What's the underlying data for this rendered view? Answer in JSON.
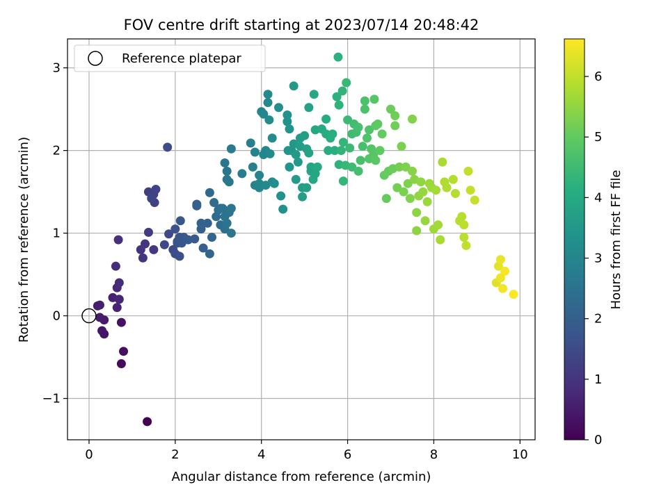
{
  "chart_data": {
    "type": "scatter",
    "title": "FOV centre drift starting at 2023/07/14 20:48:42",
    "xlabel": "Angular distance from reference (arcmin)",
    "ylabel": "Rotation from reference (arcmin)",
    "xlim": [
      -0.5,
      10.35
    ],
    "ylim": [
      -1.5,
      3.35
    ],
    "x_ticks": [
      0,
      2,
      4,
      6,
      8,
      10
    ],
    "y_ticks": [
      -1,
      0,
      1,
      2,
      3
    ],
    "x_tick_labels": [
      "0",
      "2",
      "4",
      "6",
      "8",
      "10"
    ],
    "y_tick_labels": [
      "−1",
      "0",
      "1",
      "2",
      "3"
    ],
    "grid": true,
    "legend": {
      "placement": "top-left",
      "label": "Reference platepar"
    },
    "reference": {
      "x": 0,
      "y": 0
    },
    "colorbar": {
      "label": "Hours from first FF file",
      "colormap": "viridis",
      "range": [
        0,
        6.62
      ],
      "ticks": [
        0,
        1,
        2,
        3,
        4,
        5,
        6
      ],
      "tick_labels": [
        "0",
        "1",
        "2",
        "3",
        "4",
        "5",
        "6"
      ]
    },
    "points": [
      [
        1.35,
        -1.28,
        0.0
      ],
      [
        0.75,
        -0.58,
        0.2
      ],
      [
        0.8,
        -0.43,
        0.25
      ],
      [
        0.75,
        -0.08,
        0.3
      ],
      [
        0.35,
        -0.22,
        0.35
      ],
      [
        0.3,
        -0.18,
        0.4
      ],
      [
        0.35,
        -0.05,
        0.45
      ],
      [
        0.25,
        -0.02,
        0.5
      ],
      [
        0.2,
        0.12,
        0.5
      ],
      [
        0.25,
        0.13,
        0.55
      ],
      [
        0.55,
        0.22,
        0.6
      ],
      [
        0.65,
        0.1,
        0.65
      ],
      [
        0.7,
        0.2,
        0.7
      ],
      [
        0.65,
        0.34,
        0.75
      ],
      [
        0.7,
        0.4,
        0.8
      ],
      [
        0.62,
        0.6,
        0.85
      ],
      [
        0.68,
        0.92,
        0.9
      ],
      [
        1.25,
        0.7,
        1.0
      ],
      [
        1.2,
        0.8,
        1.0
      ],
      [
        1.3,
        0.87,
        1.05
      ],
      [
        1.5,
        0.8,
        1.1
      ],
      [
        1.38,
        1.01,
        1.15
      ],
      [
        1.38,
        1.5,
        1.2
      ],
      [
        1.5,
        1.47,
        1.25
      ],
      [
        1.55,
        1.53,
        1.3
      ],
      [
        1.52,
        1.37,
        1.3
      ],
      [
        1.45,
        1.42,
        1.35
      ],
      [
        1.75,
        0.86,
        1.4
      ],
      [
        1.85,
        0.99,
        1.45
      ],
      [
        1.82,
        2.04,
        1.5
      ],
      [
        1.95,
        0.8,
        1.5
      ],
      [
        2.0,
        0.75,
        1.55
      ],
      [
        2.05,
        0.88,
        1.6
      ],
      [
        2.1,
        0.72,
        1.6
      ],
      [
        2.0,
        1.05,
        1.65
      ],
      [
        2.1,
        0.95,
        1.7
      ],
      [
        2.15,
        0.88,
        1.75
      ],
      [
        2.05,
        0.9,
        1.75
      ],
      [
        2.12,
        1.15,
        1.8
      ],
      [
        2.2,
        0.95,
        1.8
      ],
      [
        2.3,
        0.92,
        1.85
      ],
      [
        2.45,
        0.93,
        1.9
      ],
      [
        2.5,
        1.35,
        1.95
      ],
      [
        2.5,
        1.33,
        2.0
      ],
      [
        2.65,
        0.82,
        2.0
      ],
      [
        2.6,
        1.05,
        2.05
      ],
      [
        2.6,
        1.12,
        2.1
      ],
      [
        2.75,
        1.12,
        2.1
      ],
      [
        2.8,
        0.75,
        2.15
      ],
      [
        2.85,
        0.95,
        2.2
      ],
      [
        2.8,
        1.49,
        2.25
      ],
      [
        2.95,
        1.2,
        2.3
      ],
      [
        3.05,
        1.1,
        2.35
      ],
      [
        2.9,
        1.37,
        2.35
      ],
      [
        3.0,
        1.28,
        2.4
      ],
      [
        3.05,
        1.3,
        2.4
      ],
      [
        3.1,
        1.3,
        2.45
      ],
      [
        3.15,
        1.05,
        2.45
      ],
      [
        3.2,
        1.12,
        2.5
      ],
      [
        3.15,
        1.2,
        2.5
      ],
      [
        3.25,
        1.25,
        2.55
      ],
      [
        3.3,
        1.3,
        2.55
      ],
      [
        3.3,
        1.0,
        2.55
      ],
      [
        3.15,
        1.85,
        2.6
      ],
      [
        3.2,
        1.75,
        2.6
      ],
      [
        3.2,
        1.65,
        2.65
      ],
      [
        3.25,
        1.62,
        2.65
      ],
      [
        3.3,
        2.02,
        2.7
      ],
      [
        3.55,
        1.72,
        2.75
      ],
      [
        3.75,
        2.09,
        2.8
      ],
      [
        3.8,
        1.8,
        2.85
      ],
      [
        3.85,
        1.98,
        2.9
      ],
      [
        3.85,
        1.58,
        2.9
      ],
      [
        3.95,
        1.55,
        2.95
      ],
      [
        3.95,
        1.6,
        2.95
      ],
      [
        3.95,
        1.7,
        3.0
      ],
      [
        4.0,
        2.47,
        3.0
      ],
      [
        4.05,
        1.95,
        3.0
      ],
      [
        4.05,
        2.44,
        3.05
      ],
      [
        4.1,
        2.0,
        3.05
      ],
      [
        4.1,
        1.58,
        3.1
      ],
      [
        4.15,
        2.58,
        3.1
      ],
      [
        4.15,
        2.68,
        3.15
      ],
      [
        4.25,
        1.62,
        3.15
      ],
      [
        4.2,
        1.96,
        3.15
      ],
      [
        4.18,
        2.37,
        3.2
      ],
      [
        4.25,
        2.15,
        3.2
      ],
      [
        4.3,
        1.6,
        3.25
      ],
      [
        4.4,
        2.52,
        3.25
      ],
      [
        4.5,
        1.29,
        3.3
      ],
      [
        4.45,
        1.45,
        3.3
      ],
      [
        4.6,
        2.35,
        3.3
      ],
      [
        4.6,
        2.43,
        3.35
      ],
      [
        4.65,
        2.26,
        3.4
      ],
      [
        4.62,
        2.0,
        3.4
      ],
      [
        4.65,
        1.8,
        3.45
      ],
      [
        4.7,
        2.0,
        3.45
      ],
      [
        4.75,
        2.78,
        3.5
      ],
      [
        4.75,
        2.08,
        3.5
      ],
      [
        4.8,
        1.95,
        3.55
      ],
      [
        4.85,
        1.86,
        3.55
      ],
      [
        4.8,
        1.65,
        3.6
      ],
      [
        4.9,
        2.15,
        3.6
      ],
      [
        4.9,
        2.05,
        3.65
      ],
      [
        4.95,
        1.55,
        3.65
      ],
      [
        4.95,
        1.44,
        3.7
      ],
      [
        5.0,
        2.18,
        3.7
      ],
      [
        5.05,
        1.55,
        3.75
      ],
      [
        5.05,
        2.02,
        3.75
      ],
      [
        5.1,
        1.97,
        3.8
      ],
      [
        5.1,
        2.52,
        3.8
      ],
      [
        5.15,
        1.75,
        3.85
      ],
      [
        5.15,
        1.8,
        3.85
      ],
      [
        5.2,
        1.65,
        3.9
      ],
      [
        5.22,
        2.68,
        3.9
      ],
      [
        5.25,
        1.72,
        3.95
      ],
      [
        5.25,
        2.25,
        3.95
      ],
      [
        5.3,
        1.8,
        4.0
      ],
      [
        5.4,
        2.26,
        4.0
      ],
      [
        5.5,
        2.38,
        4.05
      ],
      [
        5.5,
        2.2,
        4.05
      ],
      [
        5.55,
        2.0,
        4.1
      ],
      [
        5.6,
        2.15,
        4.1
      ],
      [
        5.65,
        2.2,
        4.15
      ],
      [
        5.7,
        2.0,
        4.15
      ],
      [
        5.75,
        2.65,
        4.2
      ],
      [
        5.78,
        3.13,
        4.2
      ],
      [
        5.8,
        1.83,
        4.25
      ],
      [
        5.8,
        2.55,
        4.25
      ],
      [
        5.85,
        2.0,
        4.3
      ],
      [
        5.88,
        2.72,
        4.3
      ],
      [
        5.9,
        2.1,
        4.35
      ],
      [
        5.9,
        1.63,
        4.35
      ],
      [
        5.95,
        1.82,
        4.4
      ],
      [
        5.97,
        2.82,
        4.4
      ],
      [
        6.0,
        2.37,
        4.45
      ],
      [
        6.05,
        2.03,
        4.45
      ],
      [
        6.1,
        1.8,
        4.5
      ],
      [
        6.1,
        2.2,
        4.5
      ],
      [
        6.15,
        2.32,
        4.55
      ],
      [
        6.2,
        2.22,
        4.55
      ],
      [
        6.25,
        2.28,
        4.6
      ],
      [
        6.25,
        1.75,
        4.6
      ],
      [
        6.3,
        1.88,
        4.65
      ],
      [
        6.35,
        2.05,
        4.65
      ],
      [
        6.4,
        2.6,
        4.7
      ],
      [
        6.4,
        2.5,
        4.7
      ],
      [
        6.45,
        2.15,
        4.75
      ],
      [
        6.5,
        2.25,
        4.75
      ],
      [
        6.5,
        1.9,
        4.8
      ],
      [
        6.55,
        2.02,
        4.8
      ],
      [
        6.6,
        1.95,
        4.85
      ],
      [
        6.62,
        2.62,
        4.85
      ],
      [
        6.65,
        2.3,
        4.9
      ],
      [
        6.65,
        1.88,
        4.9
      ],
      [
        6.7,
        2.32,
        4.95
      ],
      [
        6.75,
        2.0,
        4.95
      ],
      [
        6.8,
        2.2,
        5.0
      ],
      [
        6.85,
        1.7,
        5.0
      ],
      [
        6.9,
        1.42,
        5.05
      ],
      [
        6.95,
        1.75,
        5.05
      ],
      [
        7.0,
        2.5,
        5.1
      ],
      [
        7.05,
        1.78,
        5.1
      ],
      [
        7.1,
        2.3,
        5.15
      ],
      [
        7.1,
        2.42,
        5.15
      ],
      [
        7.15,
        1.55,
        5.2
      ],
      [
        7.2,
        1.8,
        5.2
      ],
      [
        7.25,
        2.05,
        5.25
      ],
      [
        7.3,
        1.5,
        5.25
      ],
      [
        7.35,
        1.8,
        5.3
      ],
      [
        7.4,
        1.6,
        5.3
      ],
      [
        7.45,
        1.42,
        5.35
      ],
      [
        7.5,
        2.38,
        5.35
      ],
      [
        7.5,
        1.75,
        5.4
      ],
      [
        7.55,
        1.65,
        5.4
      ],
      [
        7.6,
        1.25,
        5.45
      ],
      [
        7.6,
        1.03,
        5.45
      ],
      [
        7.65,
        1.45,
        5.5
      ],
      [
        7.7,
        1.62,
        5.5
      ],
      [
        7.75,
        1.5,
        5.55
      ],
      [
        7.8,
        1.15,
        5.55
      ],
      [
        7.85,
        1.38,
        5.6
      ],
      [
        7.9,
        1.6,
        5.6
      ],
      [
        7.95,
        1.55,
        5.65
      ],
      [
        8.0,
        1.05,
        5.65
      ],
      [
        8.05,
        1.52,
        5.7
      ],
      [
        8.1,
        1.1,
        5.7
      ],
      [
        8.15,
        0.92,
        5.75
      ],
      [
        8.2,
        1.86,
        5.75
      ],
      [
        8.25,
        1.62,
        5.8
      ],
      [
        8.3,
        1.55,
        5.8
      ],
      [
        8.45,
        1.65,
        5.85
      ],
      [
        8.5,
        1.48,
        5.85
      ],
      [
        8.6,
        1.15,
        5.9
      ],
      [
        8.65,
        1.2,
        5.9
      ],
      [
        8.7,
        0.95,
        5.95
      ],
      [
        8.7,
        1.1,
        5.95
      ],
      [
        8.75,
        0.85,
        6.0
      ],
      [
        8.8,
        1.75,
        6.0
      ],
      [
        8.85,
        1.52,
        6.05
      ],
      [
        8.95,
        1.4,
        6.05
      ],
      [
        9.45,
        0.4,
        6.3
      ],
      [
        9.5,
        0.6,
        6.35
      ],
      [
        9.55,
        0.68,
        6.4
      ],
      [
        9.55,
        0.46,
        6.45
      ],
      [
        9.6,
        0.33,
        6.5
      ],
      [
        9.65,
        0.54,
        6.55
      ],
      [
        9.85,
        0.26,
        6.6
      ]
    ]
  }
}
